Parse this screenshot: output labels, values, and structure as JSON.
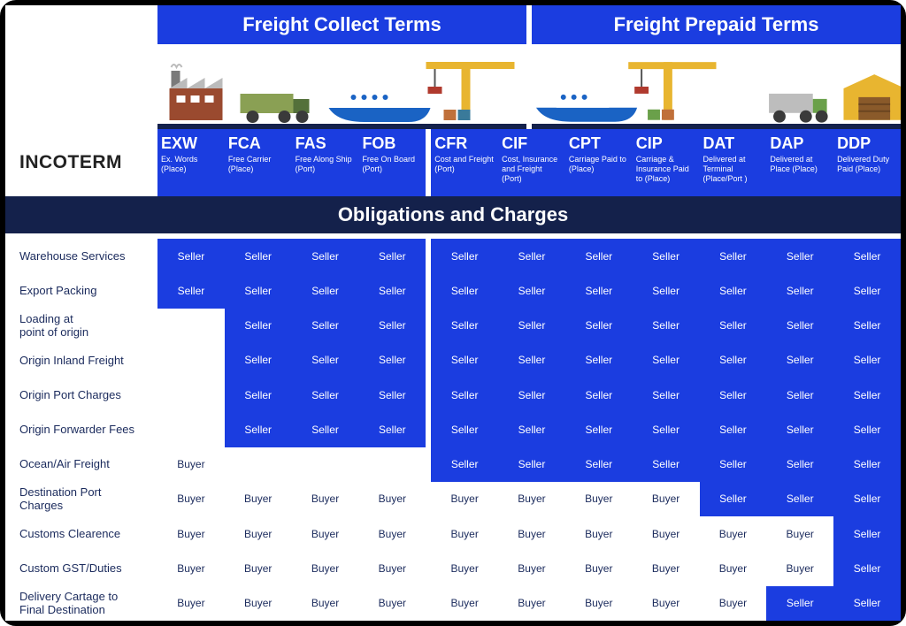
{
  "colors": {
    "header_blue": "#1b3de0",
    "dark_bar": "#14214b",
    "cell_seller_bg": "#1b3de0",
    "cell_buyer_bg": "#ffffff",
    "cell_empty_bg": "#ffffff",
    "seller_text": "#ffffff",
    "buyer_text": "#1a2a5c",
    "divider": "#ffffff"
  },
  "typography": {
    "header_fontsize": 22,
    "term_code_fontsize": 18,
    "term_desc_fontsize": 9,
    "row_label_fontsize": 13,
    "cell_fontsize": 12,
    "incoterm_fontsize": 21
  },
  "headers": {
    "left": "Freight Collect Terms",
    "right": "Freight Prepaid Terms"
  },
  "incoterm_label": "INCOTERM",
  "obligations_title": "Obligations and Charges",
  "terms_left": [
    {
      "code": "EXW",
      "desc": "Ex. Words (Place)"
    },
    {
      "code": "FCA",
      "desc": "Free Carrier (Place)"
    },
    {
      "code": "FAS",
      "desc": "Free Along Ship (Port)"
    },
    {
      "code": "FOB",
      "desc": "Free On Board (Port)"
    }
  ],
  "terms_right": [
    {
      "code": "CFR",
      "desc": "Cost and Freight (Port)"
    },
    {
      "code": "CIF",
      "desc": "Cost, Insurance and Freight (Port)"
    },
    {
      "code": "CPT",
      "desc": "Carriage Paid to (Place)"
    },
    {
      "code": "CIP",
      "desc": "Carriage & Insurance Paid to (Place)"
    },
    {
      "code": "DAT",
      "desc": "Delivered at Terminal (Place/Port )"
    },
    {
      "code": "DAP",
      "desc": "Delivered at Place (Place)"
    },
    {
      "code": "DDP",
      "desc": "Delivered Duty Paid (Place)"
    }
  ],
  "row_labels": [
    "Warehouse Services",
    "Export Packing",
    "Loading at\npoint of origin",
    "Origin Inland Freight",
    "Origin Port Charges",
    "Origin Forwarder Fees",
    "Ocean/Air Freight",
    "Destination Port\nCharges",
    "Customs Clearence",
    "Custom GST/Duties",
    "Delivery Cartage to\nFinal Destination"
  ],
  "seller_label": "Seller",
  "buyer_label": "Buyer",
  "table": {
    "type": "matrix",
    "legend": {
      "S": "Seller (blue bg, white text)",
      "B": "Buyer (white bg, dark text)",
      "E": "Empty (white bg, no text)"
    },
    "columns": [
      "EXW",
      "FCA",
      "FAS",
      "FOB",
      "CFR",
      "CIF",
      "CPT",
      "CIP",
      "DAT",
      "DAP",
      "DDP"
    ],
    "values": [
      [
        "S",
        "S",
        "S",
        "S",
        "S",
        "S",
        "S",
        "S",
        "S",
        "S",
        "S"
      ],
      [
        "S",
        "S",
        "S",
        "S",
        "S",
        "S",
        "S",
        "S",
        "S",
        "S",
        "S"
      ],
      [
        "E",
        "S",
        "S",
        "S",
        "S",
        "S",
        "S",
        "S",
        "S",
        "S",
        "S"
      ],
      [
        "E",
        "S",
        "S",
        "S",
        "S",
        "S",
        "S",
        "S",
        "S",
        "S",
        "S"
      ],
      [
        "E",
        "S",
        "S",
        "S",
        "S",
        "S",
        "S",
        "S",
        "S",
        "S",
        "S"
      ],
      [
        "E",
        "S",
        "S",
        "S",
        "S",
        "S",
        "S",
        "S",
        "S",
        "S",
        "S"
      ],
      [
        "B",
        "E",
        "E",
        "E",
        "S",
        "S",
        "S",
        "S",
        "S",
        "S",
        "S"
      ],
      [
        "B",
        "B",
        "B",
        "B",
        "B",
        "B",
        "B",
        "B",
        "S",
        "S",
        "S"
      ],
      [
        "B",
        "B",
        "B",
        "B",
        "B",
        "B",
        "B",
        "B",
        "B",
        "B",
        "S"
      ],
      [
        "B",
        "B",
        "B",
        "B",
        "B",
        "B",
        "B",
        "B",
        "B",
        "B",
        "S"
      ],
      [
        "B",
        "B",
        "B",
        "B",
        "B",
        "B",
        "B",
        "B",
        "B",
        "S",
        "S"
      ]
    ]
  }
}
